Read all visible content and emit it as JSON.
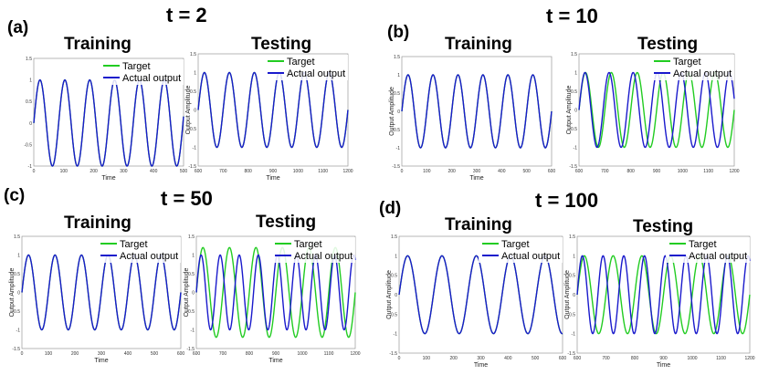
{
  "panels": [
    {
      "label": "(a)",
      "t_label": "t = 2"
    },
    {
      "label": "(b)",
      "t_label": "t = 10"
    },
    {
      "label": "(c)",
      "t_label": "t = 50"
    },
    {
      "label": "(d)",
      "t_label": "t = 100"
    }
  ],
  "colors": {
    "target": "#22cc22",
    "actual": "#1a1acc"
  },
  "chart_data": [
    {
      "id": "a-train",
      "type": "line",
      "title": "Training",
      "xlabel": "Time",
      "ylabel": "",
      "xlim": [
        0,
        500
      ],
      "ylim": [
        -1,
        1.5
      ],
      "xticks": [
        0,
        100,
        200,
        300,
        400,
        500
      ],
      "yticks": [
        -1,
        -0.5,
        0,
        0.5,
        1,
        1.5
      ],
      "series": [
        {
          "name": "Target",
          "period": 83,
          "phase": 0,
          "amp": 1
        },
        {
          "name": "Actual output",
          "period": 83,
          "phase": 0,
          "amp": 1
        }
      ],
      "legend": "top-right"
    },
    {
      "id": "a-test",
      "type": "line",
      "title": "Testing",
      "xlabel": "Time",
      "ylabel": "Output Amplitude",
      "xlim": [
        600,
        1200
      ],
      "ylim": [
        -1.5,
        1.5
      ],
      "xticks": [
        600,
        700,
        800,
        900,
        1000,
        1100,
        1200
      ],
      "yticks": [
        -1.5,
        -1,
        -0.5,
        0,
        0.5,
        1,
        1.5
      ],
      "series": [
        {
          "name": "Target",
          "period": 100,
          "phase": 0,
          "amp": 1
        },
        {
          "name": "Actual output",
          "period": 100,
          "phase": 0,
          "amp": 1
        }
      ],
      "legend": "top-right"
    },
    {
      "id": "b-train",
      "type": "line",
      "title": "Training",
      "xlabel": "Time",
      "ylabel": "Output Amplitude",
      "xlim": [
        0,
        600
      ],
      "ylim": [
        -1.5,
        1.5
      ],
      "xticks": [
        0,
        100,
        200,
        300,
        400,
        500,
        600
      ],
      "yticks": [
        -1.5,
        -1,
        -0.5,
        0,
        0.5,
        1,
        1.5
      ],
      "series": [
        {
          "name": "Target",
          "period": 100,
          "phase": 0,
          "amp": 1
        },
        {
          "name": "Actual output",
          "period": 100,
          "phase": 0,
          "amp": 1
        }
      ],
      "legend": "none"
    },
    {
      "id": "b-test",
      "type": "line",
      "title": "Testing",
      "xlabel": "",
      "ylabel": "Output Amplitude",
      "xlim": [
        600,
        1200
      ],
      "ylim": [
        -1.5,
        1.5
      ],
      "xticks": [
        600,
        700,
        800,
        900,
        1000,
        1100,
        1200
      ],
      "yticks": [
        -1.5,
        -1,
        -0.5,
        0,
        0.5,
        1,
        1.5
      ],
      "series": [
        {
          "name": "Target",
          "period": 100,
          "phase": 0,
          "amp": 1
        },
        {
          "name": "Actual output",
          "period": 93,
          "phase": 0,
          "amp": 1
        }
      ],
      "legend": "top-right"
    },
    {
      "id": "c-train",
      "type": "line",
      "title": "Training",
      "xlabel": "Time",
      "ylabel": "Output Amplitude",
      "xlim": [
        0,
        600
      ],
      "ylim": [
        -1.5,
        1.5
      ],
      "xticks": [
        0,
        100,
        200,
        300,
        400,
        500,
        600
      ],
      "yticks": [
        -1.5,
        -1,
        -0.5,
        0,
        0.5,
        1,
        1.5
      ],
      "series": [
        {
          "name": "Target",
          "period": 100,
          "phase": 0,
          "amp": 1
        },
        {
          "name": "Actual output",
          "period": 100,
          "phase": 0,
          "amp": 1
        }
      ],
      "legend": "top-right"
    },
    {
      "id": "c-test",
      "type": "line",
      "title": "Testing",
      "xlabel": "Time",
      "ylabel": "Output Amplitude",
      "xlim": [
        600,
        1200
      ],
      "ylim": [
        -1.5,
        1.5
      ],
      "xticks": [
        600,
        700,
        800,
        900,
        1000,
        1100,
        1200
      ],
      "yticks": [
        -1.5,
        -1,
        -0.5,
        0,
        0.5,
        1,
        1.5
      ],
      "series": [
        {
          "name": "Target",
          "period": 100,
          "phase": 0,
          "amp": 1.2
        },
        {
          "name": "Actual output",
          "period": 72,
          "phase": 0,
          "amp": 1
        }
      ],
      "legend": "top-right"
    },
    {
      "id": "d-train",
      "type": "line",
      "title": "Training",
      "xlabel": "Time",
      "ylabel": "Output Amplitude",
      "xlim": [
        0,
        600
      ],
      "ylim": [
        -1.5,
        1.5
      ],
      "xticks": [
        0,
        100,
        200,
        300,
        400,
        500,
        600
      ],
      "yticks": [
        -1.5,
        -1,
        -0.5,
        0,
        0.5,
        1,
        1.5
      ],
      "series": [
        {
          "name": "Target",
          "period": 126,
          "phase": 0,
          "amp": 1
        },
        {
          "name": "Actual output",
          "period": 126,
          "phase": 0,
          "amp": 1
        }
      ],
      "legend": "top-right"
    },
    {
      "id": "d-test",
      "type": "line",
      "title": "Testing",
      "xlabel": "Time",
      "ylabel": "Output Amplitude",
      "xlim": [
        600,
        1200
      ],
      "ylim": [
        -1.5,
        1.5
      ],
      "xticks": [
        600,
        700,
        800,
        900,
        1000,
        1100,
        1200
      ],
      "yticks": [
        -1.5,
        -1,
        -0.5,
        0,
        0.5,
        1,
        1.5
      ],
      "series": [
        {
          "name": "Target",
          "period": 100,
          "phase": 0,
          "amp": 1
        },
        {
          "name": "Actual output",
          "period": 72,
          "phase": 0,
          "amp": 1
        }
      ],
      "legend": "top-right"
    }
  ]
}
